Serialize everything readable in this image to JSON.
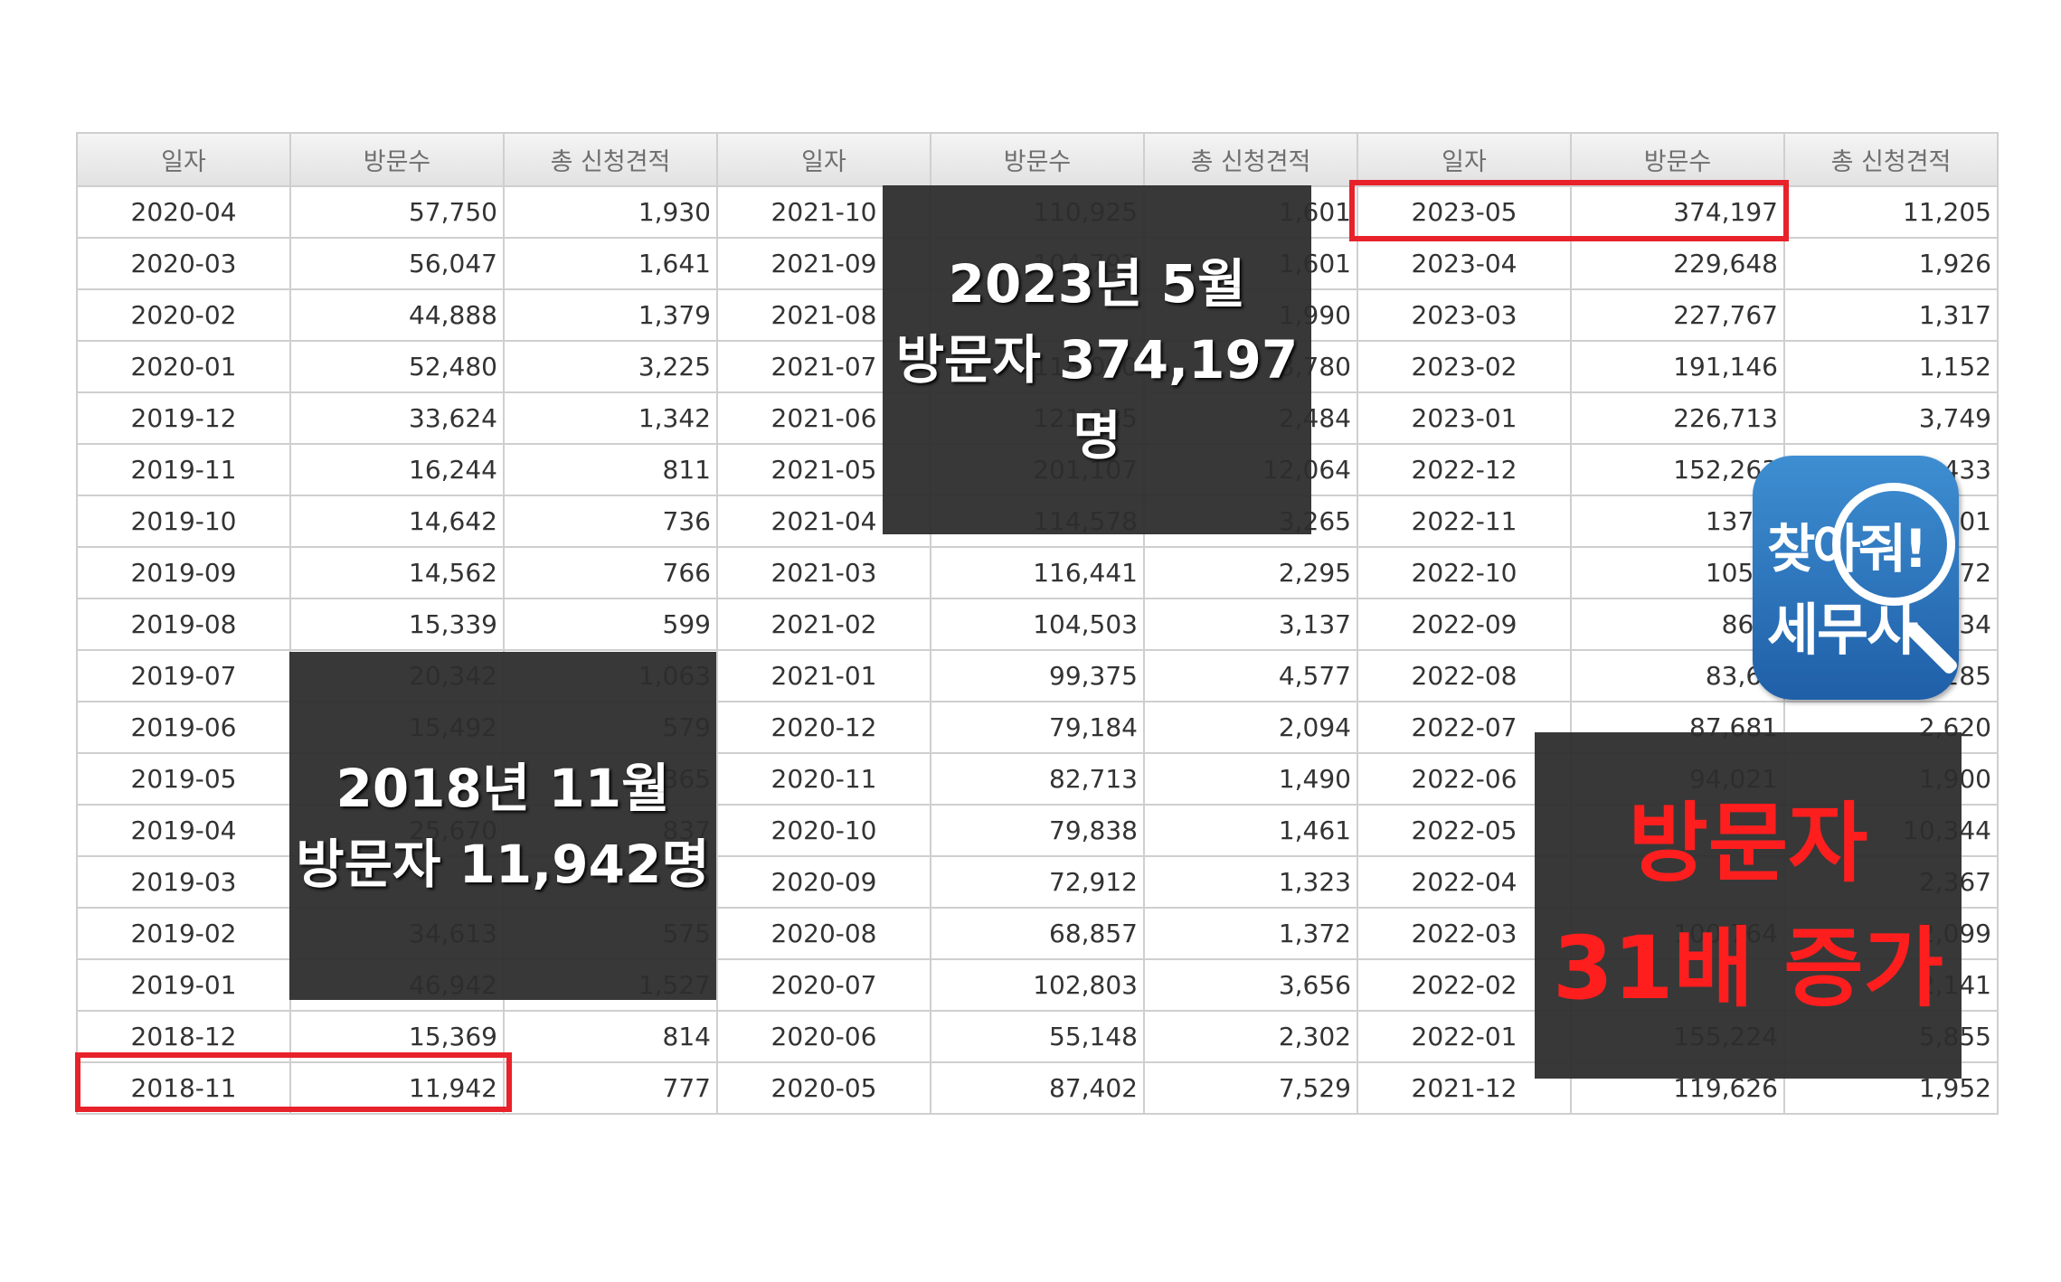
{
  "columns": [
    "일자",
    "방문수",
    "총 신청견적",
    "일자",
    "방문수",
    "총 신청견적",
    "일자",
    "방문수",
    "총 신청견적"
  ],
  "rows": [
    [
      "2020-04",
      "57,750",
      "1,930",
      "2021-10",
      "110,925",
      "1,601",
      "2023-05",
      "374,197",
      "11,205"
    ],
    [
      "2020-03",
      "56,047",
      "1,641",
      "2021-09",
      "104,792",
      "1,601",
      "2023-04",
      "229,648",
      "1,926"
    ],
    [
      "2020-02",
      "44,888",
      "1,379",
      "2021-08",
      "",
      "1,990",
      "2023-03",
      "227,767",
      "1,317"
    ],
    [
      "2020-01",
      "52,480",
      "3,225",
      "2021-07",
      "118,060",
      "3,780",
      "2023-02",
      "191,146",
      "1,152"
    ],
    [
      "2019-12",
      "33,624",
      "1,342",
      "2021-06",
      "121,085",
      "2,484",
      "2023-01",
      "226,713",
      "3,749"
    ],
    [
      "2019-11",
      "16,244",
      "811",
      "2021-05",
      "201,107",
      "12,064",
      "2022-12",
      "152,263",
      "1,433"
    ],
    [
      "2019-10",
      "14,642",
      "736",
      "2021-04",
      "114,578",
      "3,265",
      "2022-11",
      "137,8",
      "01"
    ],
    [
      "2019-09",
      "14,562",
      "766",
      "2021-03",
      "116,441",
      "2,295",
      "2022-10",
      "105,1",
      "72"
    ],
    [
      "2019-08",
      "15,339",
      "599",
      "2021-02",
      "104,503",
      "3,137",
      "2022-09",
      "86,9",
      "34"
    ],
    [
      "2019-07",
      "20,342",
      "1,063",
      "2021-01",
      "99,375",
      "4,577",
      "2022-08",
      "83,60",
      "285"
    ],
    [
      "2019-06",
      "15,492",
      "579",
      "2020-12",
      "79,184",
      "2,094",
      "2022-07",
      "87,681",
      "2,620"
    ],
    [
      "2019-05",
      "",
      "2,365",
      "2020-11",
      "82,713",
      "1,490",
      "2022-06",
      "94,021",
      "1,900"
    ],
    [
      "2019-04",
      "25,670",
      "837",
      "2020-10",
      "79,838",
      "1,461",
      "2022-05",
      "",
      "10,344"
    ],
    [
      "2019-03",
      "",
      "79",
      "2020-09",
      "72,912",
      "1,323",
      "2022-04",
      "",
      "2,367"
    ],
    [
      "2019-02",
      "34,613",
      "575",
      "2020-08",
      "68,857",
      "1,372",
      "2022-03",
      "100,764",
      "2,099"
    ],
    [
      "2019-01",
      "46,942",
      "1,527",
      "2020-07",
      "102,803",
      "3,656",
      "2022-02",
      "",
      "2,141"
    ],
    [
      "2018-12",
      "15,369",
      "814",
      "2020-06",
      "55,148",
      "2,302",
      "2022-01",
      "155,224",
      "5,855"
    ],
    [
      "2018-11",
      "11,942",
      "777",
      "2020-05",
      "87,402",
      "7,529",
      "2021-12",
      "119,626",
      "1,952"
    ]
  ],
  "overlay_top": {
    "line1": "2023년 5월",
    "line2": "방문자 374,197명"
  },
  "overlay_bottom": {
    "line1": "2018년 11월",
    "line2": "방문자 11,942명"
  },
  "overlay_growth": {
    "line1": "방문자",
    "line2": "31배 증가"
  },
  "logo": {
    "line1": "찾아줘!",
    "line2": "세무사"
  },
  "colors": {
    "highlight": "#e8222a",
    "growth_text": "#ff1e1e",
    "logo_bg": "#2a74bf",
    "overlay_bg": "#2d2d2d"
  }
}
